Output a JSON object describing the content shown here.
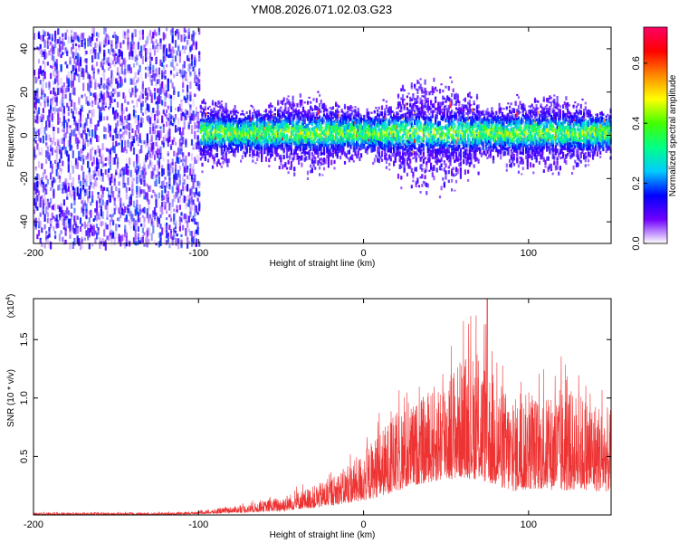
{
  "chart_data": [
    {
      "type": "heatmap",
      "title": "YM08.2026.071.02.03.G23",
      "xlabel": "Height of straight line (km)",
      "ylabel": "Frequency (Hz)",
      "xlim": [
        -200,
        150
      ],
      "ylim": [
        -50,
        50
      ],
      "xticks": [
        -200,
        -100,
        0,
        100
      ],
      "yticks": [
        -40,
        -20,
        0,
        20,
        40
      ],
      "colorbar": {
        "label": "Normalized spectral amplitude",
        "range": [
          0,
          0.72
        ],
        "ticks": [
          "0.0",
          "0.2",
          "0.4",
          "0.6"
        ],
        "colors": [
          "#ffffff",
          "#7000ff",
          "#0000ff",
          "#00ccff",
          "#00ff88",
          "#44ff00",
          "#ffff00",
          "#ff8800",
          "#ff0000",
          "#ff0066"
        ]
      },
      "regions": [
        {
          "x": [
            -200,
            -100
          ],
          "description_values": {
            "amplitude": 0.05,
            "freq_spread": [
              -50,
              50
            ]
          }
        },
        {
          "x": [
            -100,
            150
          ],
          "description_values": {
            "amplitude": 0.3,
            "freq_center": 2,
            "freq_spread": [
              -20,
              20
            ]
          }
        }
      ],
      "grid": false
    },
    {
      "type": "line",
      "xlabel": "Height of straight line (km)",
      "ylabel": "SNR (10 * v/v)",
      "multiplier_label": "(x10",
      "multiplier_exp": "4",
      "xlim": [
        -200,
        150
      ],
      "ylim": [
        0,
        1.85
      ],
      "xticks": [
        -200,
        -100,
        0,
        100
      ],
      "yticks": [
        "0.5",
        "1.0",
        "1.5"
      ],
      "series": [
        {
          "color": "#ee3333",
          "envelope": {
            "x": [
              -200,
              -120,
              -100,
              -90,
              -80,
              -70,
              -60,
              -50,
              -40,
              -30,
              -20,
              -10,
              0,
              10,
              20,
              30,
              40,
              50,
              60,
              70,
              80,
              90,
              100,
              110,
              120,
              130,
              140,
              150
            ],
            "ymax": [
              0.02,
              0.02,
              0.03,
              0.05,
              0.07,
              0.09,
              0.12,
              0.16,
              0.2,
              0.25,
              0.32,
              0.42,
              0.55,
              0.72,
              0.88,
              0.95,
              1.05,
              1.25,
              1.35,
              1.4,
              1.2,
              1.0,
              1.05,
              1.0,
              1.1,
              1.05,
              1.0,
              0.9
            ],
            "ymin": [
              0.0,
              0.0,
              0.01,
              0.01,
              0.02,
              0.02,
              0.03,
              0.03,
              0.05,
              0.06,
              0.08,
              0.1,
              0.12,
              0.16,
              0.2,
              0.25,
              0.28,
              0.3,
              0.32,
              0.3,
              0.25,
              0.2,
              0.22,
              0.22,
              0.2,
              0.22,
              0.2,
              0.2
            ]
          },
          "peak": {
            "x": 75,
            "y": 1.85
          }
        }
      ],
      "grid": false
    }
  ]
}
